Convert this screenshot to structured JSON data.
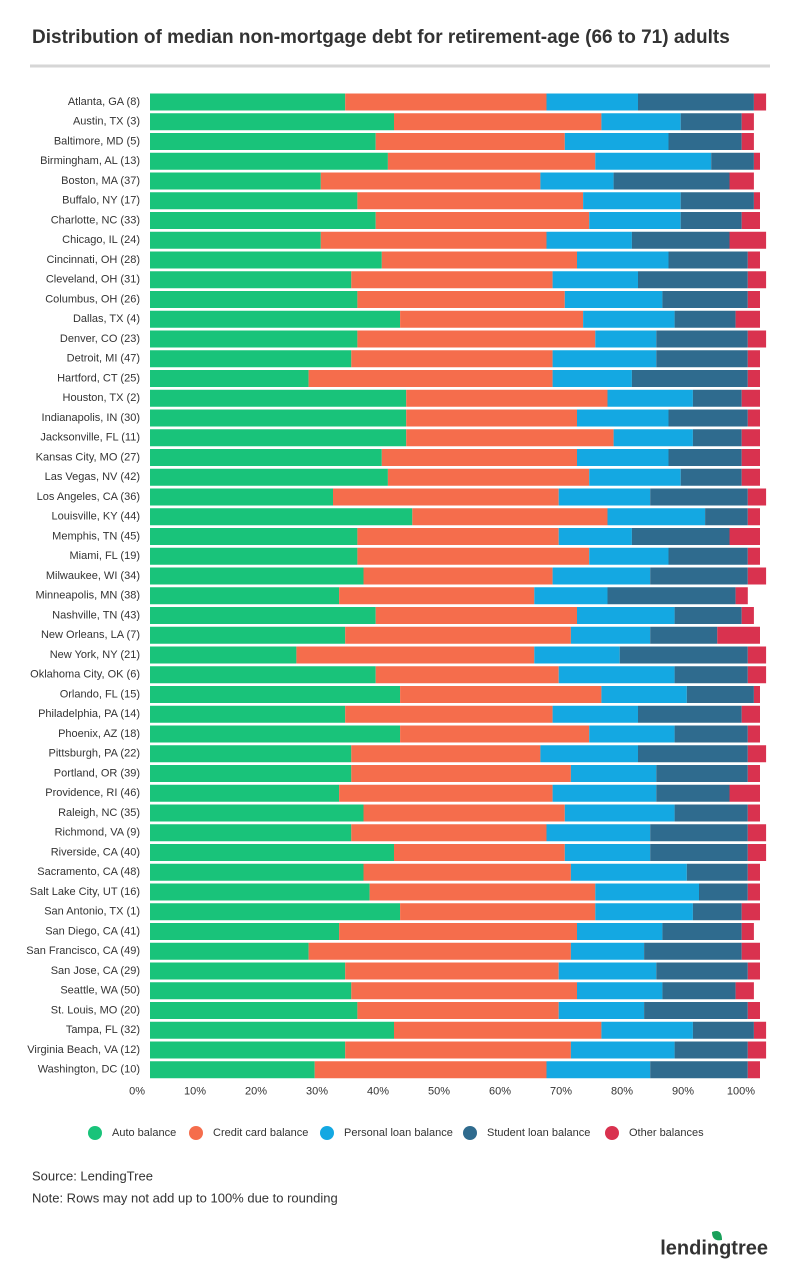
{
  "chart_data": {
    "type": "stacked-bar-horizontal",
    "title": "Distribution of median non-mortgage debt for retirement-age (66 to 71) adults",
    "categories": [
      "Atlanta, GA (8)",
      "Austin, TX (3)",
      "Baltimore, MD (5)",
      "Birmingham, AL (13)",
      "Boston, MA (37)",
      "Buffalo, NY (17)",
      "Charlotte, NC (33)",
      "Chicago, IL (24)",
      "Cincinnati, OH (28)",
      "Cleveland, OH (31)",
      "Columbus, OH (26)",
      "Dallas, TX (4)",
      "Denver, CO (23)",
      "Detroit, MI (47)",
      "Hartford, CT (25)",
      "Houston, TX (2)",
      "Indianapolis, IN (30)",
      "Jacksonville, FL (11)",
      "Kansas City, MO (27)",
      "Las Vegas, NV (42)",
      "Los Angeles, CA (36)",
      "Louisville, KY (44)",
      "Memphis, TN (45)",
      "Miami, FL (19)",
      "Milwaukee, WI (34)",
      "Minneapolis, MN (38)",
      "Nashville, TN (43)",
      "New Orleans, LA (7)",
      "New York, NY (21)",
      "Oklahoma City, OK (6)",
      "Orlando, FL (15)",
      "Philadelphia, PA (14)",
      "Phoenix, AZ (18)",
      "Pittsburgh, PA (22)",
      "Portland, OR (39)",
      "Providence, RI (46)",
      "Raleigh, NC (35)",
      "Richmond, VA (9)",
      "Riverside, CA (40)",
      "Sacramento, CA (48)",
      "Salt Lake City, UT (16)",
      "San Antonio, TX (1)",
      "San Diego, CA (41)",
      "San Francisco, CA (49)",
      "San Jose, CA (29)",
      "Seattle, WA (50)",
      "St. Louis, MO (20)",
      "Tampa, FL (32)",
      "Virginia Beach, VA (12)",
      "Washington, DC (10)"
    ],
    "series": [
      {
        "name": "Auto balance",
        "color": "#19c37a",
        "values": [
          32,
          40,
          37,
          39,
          28,
          34,
          37,
          28,
          38,
          33,
          34,
          41,
          34,
          33,
          26,
          42,
          42,
          42,
          38,
          39,
          30,
          43,
          34,
          34,
          35,
          31,
          37,
          32,
          24,
          37,
          41,
          32,
          41,
          33,
          33,
          31,
          35,
          33,
          40,
          35,
          36,
          41,
          31,
          26,
          32,
          33,
          34,
          40,
          32,
          27
        ]
      },
      {
        "name": "Credit card balance",
        "color": "#f56d4c",
        "values": [
          33,
          34,
          31,
          34,
          36,
          37,
          35,
          37,
          32,
          33,
          34,
          30,
          39,
          33,
          40,
          33,
          28,
          34,
          32,
          33,
          37,
          32,
          33,
          38,
          31,
          32,
          33,
          37,
          39,
          30,
          33,
          34,
          31,
          31,
          36,
          35,
          33,
          32,
          28,
          34,
          37,
          32,
          39,
          43,
          35,
          37,
          33,
          34,
          37,
          38
        ]
      },
      {
        "name": "Personal loan balance",
        "color": "#14a8e2",
        "values": [
          15,
          13,
          17,
          19,
          12,
          16,
          15,
          14,
          15,
          14,
          16,
          15,
          10,
          17,
          13,
          14,
          15,
          13,
          15,
          15,
          15,
          16,
          12,
          13,
          16,
          12,
          16,
          13,
          14,
          19,
          14,
          14,
          14,
          16,
          14,
          17,
          18,
          17,
          14,
          19,
          17,
          16,
          14,
          12,
          16,
          14,
          14,
          15,
          17,
          17
        ]
      },
      {
        "name": "Student loan balance",
        "color": "#2f6b8e",
        "values": [
          19,
          10,
          12,
          7,
          19,
          12,
          10,
          16,
          13,
          18,
          14,
          10,
          15,
          15,
          19,
          8,
          13,
          8,
          12,
          10,
          16,
          7,
          16,
          13,
          16,
          21,
          11,
          11,
          21,
          12,
          11,
          17,
          12,
          18,
          15,
          12,
          12,
          16,
          16,
          10,
          8,
          8,
          13,
          16,
          15,
          12,
          17,
          10,
          12,
          16
        ]
      },
      {
        "name": "Other balances",
        "color": "#d9324f",
        "values": [
          2,
          2,
          2,
          1,
          4,
          1,
          3,
          6,
          2,
          3,
          2,
          4,
          3,
          2,
          2,
          3,
          2,
          3,
          3,
          3,
          3,
          2,
          5,
          2,
          3,
          2,
          2,
          7,
          3,
          3,
          1,
          3,
          2,
          3,
          2,
          5,
          2,
          3,
          3,
          2,
          2,
          3,
          2,
          3,
          2,
          3,
          2,
          2,
          3,
          2
        ]
      }
    ],
    "xlim": [
      0,
      100
    ],
    "xticks": [
      {
        "value": 0,
        "label": "0%"
      },
      {
        "value": 10,
        "label": "10%"
      },
      {
        "value": 20,
        "label": "20%"
      },
      {
        "value": 30,
        "label": "30%"
      },
      {
        "value": 40,
        "label": "40%"
      },
      {
        "value": 50,
        "label": "50%"
      },
      {
        "value": 60,
        "label": "60%"
      },
      {
        "value": 70,
        "label": "70%"
      },
      {
        "value": 80,
        "label": "80%"
      },
      {
        "value": 90,
        "label": "90%"
      },
      {
        "value": 100,
        "label": "100%"
      }
    ],
    "source": "Source: LendingTree",
    "note": "Note: Rows may not add up to 100% due to rounding",
    "logo": "lendingtree"
  }
}
